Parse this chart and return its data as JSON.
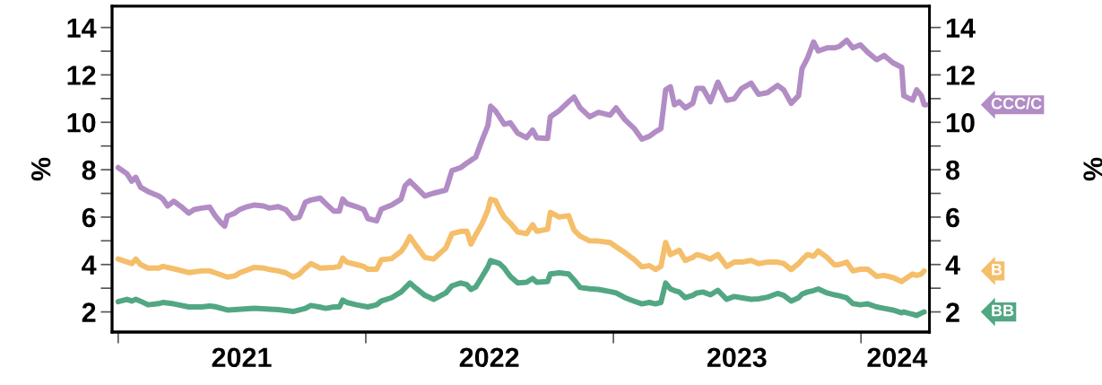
{
  "chart_data": {
    "type": "line",
    "ylabel": "%",
    "y2label": "%",
    "xlim": [
      "2020-12-23",
      "2024-04-11"
    ],
    "xticks": [
      {
        "value": "2021-01-01",
        "label": null
      },
      {
        "value": "2022-01-01",
        "label": null
      },
      {
        "value": "2023-01-01",
        "label": null
      },
      {
        "value": "2024-01-01",
        "label": null
      },
      {
        "value": "2021-07-02",
        "label": "2021"
      },
      {
        "value": "2022-07-02",
        "label": "2022"
      },
      {
        "value": "2023-07-02",
        "label": "2023"
      },
      {
        "value": "2024-02-23",
        "label": "2024"
      }
    ],
    "ylim": [
      1.15,
      14.9
    ],
    "yticks": [
      2,
      {
        "value": 3,
        "label": null
      },
      4,
      {
        "value": 5,
        "label": null
      },
      6,
      {
        "value": 7,
        "label": null
      },
      8,
      {
        "value": 9,
        "label": null
      },
      10,
      {
        "value": 11,
        "label": null
      },
      12,
      {
        "value": 13,
        "label": null
      },
      14
    ],
    "y2lim": [
      1.15,
      14.9
    ],
    "y2ticks": [
      2,
      {
        "value": 3,
        "label": null
      },
      4,
      {
        "value": 5,
        "label": null
      },
      6,
      {
        "value": 7,
        "label": null
      },
      8,
      {
        "value": 9,
        "label": null
      },
      10,
      {
        "value": 11,
        "label": null
      },
      12,
      {
        "value": 13,
        "label": null
      },
      14
    ],
    "series": [
      {
        "name": "CCC/C",
        "color": "#b28cc4",
        "x": [
          "2021-01-01",
          "2021-01-14",
          "2021-01-21",
          "2021-01-27",
          "2021-02-03",
          "2021-02-14",
          "2021-03-02",
          "2021-03-08",
          "2021-03-15",
          "2021-03-24",
          "2021-04-04",
          "2021-04-15",
          "2021-04-23",
          "2021-05-04",
          "2021-05-16",
          "2021-05-24",
          "2021-06-02",
          "2021-06-07",
          "2021-06-11",
          "2021-06-22",
          "2021-06-29",
          "2021-07-10",
          "2021-07-21",
          "2021-08-03",
          "2021-08-12",
          "2021-08-25",
          "2021-09-05",
          "2021-09-16",
          "2021-09-25",
          "2021-10-04",
          "2021-10-12",
          "2021-10-26",
          "2021-11-03",
          "2021-11-15",
          "2021-11-23",
          "2021-11-28",
          "2021-12-04",
          "2021-12-18",
          "2021-12-29",
          "2022-01-04",
          "2022-01-17",
          "2022-01-24",
          "2022-02-08",
          "2022-02-22",
          "2022-02-28",
          "2022-03-07",
          "2022-03-16",
          "2022-03-29",
          "2022-04-11",
          "2022-04-29",
          "2022-05-08",
          "2022-05-21",
          "2022-05-30",
          "2022-06-12",
          "2022-06-21",
          "2022-06-30",
          "2022-07-04",
          "2022-07-11",
          "2022-07-17",
          "2022-07-24",
          "2022-08-02",
          "2022-08-13",
          "2022-08-26",
          "2022-09-04",
          "2022-09-10",
          "2022-09-26",
          "2022-09-30",
          "2022-10-13",
          "2022-10-27",
          "2022-11-04",
          "2022-11-13",
          "2022-11-27",
          "2022-12-10",
          "2022-12-27",
          "2023-01-05",
          "2023-01-18",
          "2023-02-01",
          "2023-02-12",
          "2023-02-23",
          "2023-03-04",
          "2023-03-12",
          "2023-03-19",
          "2023-03-26",
          "2023-04-01",
          "2023-04-08",
          "2023-04-17",
          "2023-04-28",
          "2023-05-04",
          "2023-05-13",
          "2023-05-24",
          "2023-06-04",
          "2023-06-17",
          "2023-06-28",
          "2023-07-09",
          "2023-07-23",
          "2023-08-03",
          "2023-08-16",
          "2023-08-31",
          "2023-09-09",
          "2023-09-20",
          "2023-10-01",
          "2023-10-06",
          "2023-10-14",
          "2023-10-23",
          "2023-10-30",
          "2023-11-12",
          "2023-11-23",
          "2023-11-30",
          "2023-12-11",
          "2023-12-20",
          "2023-12-31",
          "2024-01-11",
          "2024-01-24",
          "2024-02-04",
          "2024-02-17",
          "2024-03-01",
          "2024-03-04",
          "2024-03-17",
          "2024-03-23",
          "2024-03-30",
          "2024-04-03",
          "2024-04-06"
        ],
        "values": [
          8.09,
          7.83,
          7.52,
          7.68,
          7.26,
          7.08,
          6.89,
          6.76,
          6.47,
          6.67,
          6.44,
          6.17,
          6.32,
          6.38,
          6.42,
          6.06,
          5.75,
          5.62,
          6.04,
          6.17,
          6.32,
          6.44,
          6.51,
          6.47,
          6.38,
          6.44,
          6.32,
          5.94,
          6.0,
          6.63,
          6.72,
          6.8,
          6.57,
          6.25,
          6.25,
          6.76,
          6.57,
          6.44,
          6.32,
          5.94,
          5.84,
          6.34,
          6.51,
          6.76,
          7.33,
          7.52,
          7.26,
          6.89,
          7.01,
          7.14,
          7.96,
          8.09,
          8.28,
          8.53,
          9.22,
          9.86,
          10.68,
          10.49,
          10.23,
          9.92,
          9.98,
          9.54,
          9.35,
          9.67,
          9.35,
          9.32,
          10.23,
          10.49,
          10.87,
          11.06,
          10.61,
          10.23,
          10.42,
          10.3,
          10.61,
          10.11,
          9.73,
          9.29,
          9.41,
          9.6,
          9.73,
          11.37,
          11.5,
          10.74,
          10.87,
          10.61,
          10.8,
          11.43,
          11.43,
          10.87,
          11.69,
          10.93,
          10.99,
          11.43,
          11.65,
          11.18,
          11.25,
          11.56,
          11.37,
          10.8,
          11.12,
          12.26,
          12.7,
          13.39,
          13.01,
          13.14,
          13.14,
          13.2,
          13.46,
          13.14,
          13.27,
          12.95,
          12.64,
          12.82,
          12.51,
          12.32,
          11.12,
          10.93,
          11.37,
          11.12,
          10.74,
          10.74
        ]
      },
      {
        "name": "B",
        "color": "#f5be6a",
        "x": [
          "2021-01-01",
          "2021-01-14",
          "2021-01-21",
          "2021-01-27",
          "2021-02-03",
          "2021-02-14",
          "2021-03-02",
          "2021-03-08",
          "2021-03-24",
          "2021-04-15",
          "2021-05-04",
          "2021-05-16",
          "2021-05-24",
          "2021-06-11",
          "2021-06-22",
          "2021-06-29",
          "2021-07-21",
          "2021-08-03",
          "2021-08-12",
          "2021-08-25",
          "2021-09-05",
          "2021-09-16",
          "2021-09-25",
          "2021-10-04",
          "2021-10-12",
          "2021-10-26",
          "2021-11-15",
          "2021-11-23",
          "2021-11-28",
          "2021-12-04",
          "2021-12-18",
          "2021-12-29",
          "2022-01-04",
          "2022-01-17",
          "2022-01-24",
          "2022-02-08",
          "2022-02-22",
          "2022-02-28",
          "2022-03-07",
          "2022-03-16",
          "2022-03-29",
          "2022-04-11",
          "2022-04-29",
          "2022-05-08",
          "2022-05-21",
          "2022-05-30",
          "2022-06-05",
          "2022-06-12",
          "2022-06-21",
          "2022-06-30",
          "2022-07-04",
          "2022-07-11",
          "2022-07-17",
          "2022-07-24",
          "2022-08-02",
          "2022-08-13",
          "2022-08-26",
          "2022-09-04",
          "2022-09-10",
          "2022-09-26",
          "2022-09-30",
          "2022-10-13",
          "2022-10-27",
          "2022-11-04",
          "2022-11-13",
          "2022-11-27",
          "2022-12-10",
          "2022-12-27",
          "2023-01-05",
          "2023-01-18",
          "2023-02-01",
          "2023-02-12",
          "2023-02-23",
          "2023-03-04",
          "2023-03-12",
          "2023-03-19",
          "2023-03-26",
          "2023-04-01",
          "2023-04-08",
          "2023-04-17",
          "2023-04-28",
          "2023-05-04",
          "2023-05-13",
          "2023-05-24",
          "2023-06-04",
          "2023-06-17",
          "2023-06-28",
          "2023-07-09",
          "2023-07-23",
          "2023-08-03",
          "2023-08-16",
          "2023-08-31",
          "2023-09-09",
          "2023-09-20",
          "2023-10-01",
          "2023-10-06",
          "2023-10-14",
          "2023-10-23",
          "2023-10-30",
          "2023-11-12",
          "2023-11-23",
          "2023-11-30",
          "2023-12-11",
          "2023-12-20",
          "2023-12-31",
          "2024-01-11",
          "2024-01-24",
          "2024-02-04",
          "2024-02-17",
          "2024-03-01",
          "2024-03-04",
          "2024-03-17",
          "2024-03-23",
          "2024-03-30",
          "2024-04-03"
        ],
        "values": [
          4.23,
          4.11,
          4.04,
          4.23,
          4.0,
          3.85,
          3.85,
          3.92,
          3.82,
          3.66,
          3.73,
          3.73,
          3.65,
          3.47,
          3.52,
          3.65,
          3.88,
          3.85,
          3.79,
          3.73,
          3.65,
          3.47,
          3.6,
          3.85,
          4.04,
          3.85,
          3.88,
          3.92,
          4.27,
          4.1,
          4.0,
          3.92,
          3.8,
          3.8,
          4.2,
          4.25,
          4.55,
          4.8,
          5.18,
          4.8,
          4.3,
          4.23,
          4.7,
          5.3,
          5.4,
          5.4,
          4.86,
          5.25,
          5.7,
          6.3,
          6.75,
          6.7,
          6.35,
          6.0,
          5.75,
          5.37,
          5.3,
          5.68,
          5.4,
          5.49,
          6.2,
          6.0,
          6.06,
          5.45,
          5.2,
          5.0,
          4.99,
          4.93,
          4.75,
          4.5,
          4.2,
          3.9,
          3.95,
          3.79,
          3.92,
          4.93,
          4.42,
          4.5,
          4.6,
          4.17,
          4.3,
          4.42,
          4.35,
          4.23,
          4.42,
          3.92,
          4.1,
          4.1,
          4.17,
          4.04,
          4.1,
          4.1,
          4.04,
          3.79,
          4.04,
          4.2,
          4.42,
          4.35,
          4.57,
          4.3,
          3.98,
          4.0,
          4.1,
          3.73,
          3.8,
          3.8,
          3.5,
          3.54,
          3.45,
          3.28,
          3.35,
          3.6,
          3.54,
          3.6,
          3.73
        ]
      },
      {
        "name": "BB",
        "color": "#52a783",
        "x": [
          "2021-01-01",
          "2021-01-14",
          "2021-01-21",
          "2021-01-27",
          "2021-02-03",
          "2021-02-14",
          "2021-03-02",
          "2021-03-08",
          "2021-03-24",
          "2021-04-15",
          "2021-05-04",
          "2021-05-16",
          "2021-05-24",
          "2021-06-11",
          "2021-06-22",
          "2021-07-21",
          "2021-08-12",
          "2021-08-25",
          "2021-09-16",
          "2021-10-04",
          "2021-10-12",
          "2021-10-26",
          "2021-11-03",
          "2021-11-15",
          "2021-11-23",
          "2021-11-28",
          "2021-12-04",
          "2021-12-18",
          "2022-01-04",
          "2022-01-17",
          "2022-01-24",
          "2022-02-08",
          "2022-02-22",
          "2022-03-07",
          "2022-03-16",
          "2022-03-29",
          "2022-04-11",
          "2022-04-29",
          "2022-05-08",
          "2022-05-21",
          "2022-05-30",
          "2022-06-05",
          "2022-06-12",
          "2022-06-21",
          "2022-06-30",
          "2022-07-04",
          "2022-07-11",
          "2022-07-17",
          "2022-07-24",
          "2022-08-02",
          "2022-08-13",
          "2022-08-26",
          "2022-09-04",
          "2022-09-10",
          "2022-09-26",
          "2022-09-30",
          "2022-10-13",
          "2022-10-27",
          "2022-11-04",
          "2022-11-13",
          "2022-11-27",
          "2022-12-10",
          "2022-12-27",
          "2023-01-05",
          "2023-01-18",
          "2023-02-01",
          "2023-02-12",
          "2023-02-23",
          "2023-03-04",
          "2023-03-12",
          "2023-03-19",
          "2023-03-26",
          "2023-04-01",
          "2023-04-08",
          "2023-04-17",
          "2023-04-28",
          "2023-05-04",
          "2023-05-13",
          "2023-05-24",
          "2023-06-04",
          "2023-06-17",
          "2023-06-28",
          "2023-07-09",
          "2023-07-23",
          "2023-08-03",
          "2023-08-16",
          "2023-08-31",
          "2023-09-09",
          "2023-09-20",
          "2023-10-01",
          "2023-10-06",
          "2023-10-14",
          "2023-10-23",
          "2023-10-30",
          "2023-11-12",
          "2023-11-23",
          "2023-11-30",
          "2023-12-11",
          "2023-12-20",
          "2023-12-31",
          "2024-01-11",
          "2024-01-24",
          "2024-02-04",
          "2024-02-17",
          "2024-03-01",
          "2024-03-04",
          "2024-03-17",
          "2024-03-23",
          "2024-03-30",
          "2024-04-03"
        ],
        "values": [
          2.43,
          2.53,
          2.46,
          2.53,
          2.45,
          2.3,
          2.35,
          2.4,
          2.34,
          2.21,
          2.21,
          2.25,
          2.22,
          2.08,
          2.1,
          2.15,
          2.12,
          2.1,
          2.02,
          2.15,
          2.27,
          2.2,
          2.15,
          2.21,
          2.21,
          2.5,
          2.4,
          2.3,
          2.21,
          2.3,
          2.46,
          2.6,
          2.84,
          3.22,
          3.0,
          2.7,
          2.53,
          2.8,
          3.1,
          3.22,
          3.15,
          2.95,
          3.05,
          3.47,
          3.9,
          4.17,
          4.1,
          4.04,
          3.85,
          3.5,
          3.22,
          3.25,
          3.41,
          3.25,
          3.28,
          3.6,
          3.65,
          3.6,
          3.35,
          3.03,
          2.98,
          2.95,
          2.86,
          2.8,
          2.6,
          2.45,
          2.34,
          2.4,
          2.34,
          2.4,
          3.22,
          2.97,
          2.9,
          2.84,
          2.6,
          2.7,
          2.8,
          2.84,
          2.72,
          2.91,
          2.53,
          2.65,
          2.6,
          2.53,
          2.55,
          2.62,
          2.78,
          2.7,
          2.46,
          2.6,
          2.75,
          2.84,
          2.9,
          2.97,
          2.8,
          2.72,
          2.68,
          2.59,
          2.35,
          2.3,
          2.34,
          2.21,
          2.15,
          2.08,
          1.96,
          2.0,
          1.9,
          1.85,
          1.95,
          2.0
        ]
      }
    ]
  }
}
